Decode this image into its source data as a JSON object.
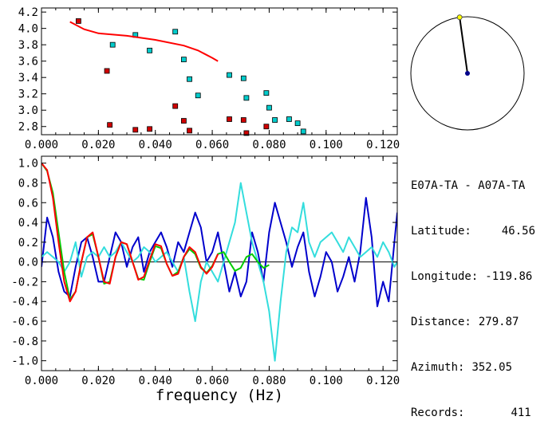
{
  "station": {
    "pair": "E07A-TA - A07A-TA",
    "latitude_label": "Latitude:",
    "latitude": "46.56",
    "longitude_label": "Longitude:",
    "longitude": "-119.86",
    "distance_label": "Distance:",
    "distance": "279.87",
    "azimuth_label": "Azimuth:",
    "azimuth": "352.05",
    "records_label": "Records:",
    "records": "411"
  },
  "compass": {
    "azimuth_deg": 352.05,
    "colors": {
      "ring": "#000000",
      "needle": "#000000",
      "tip": "#ffff00",
      "center": "#00008b"
    }
  },
  "chart_data": [
    {
      "type": "scatter",
      "title": "",
      "xlabel": "",
      "ylabel": "",
      "xlim": [
        0.0,
        0.125
      ],
      "ylim": [
        2.7,
        4.25
      ],
      "xticks": [
        "0.000",
        "0.020",
        "0.040",
        "0.060",
        "0.080",
        "0.100",
        "0.120"
      ],
      "yticks": [
        "2.8",
        "3.0",
        "3.2",
        "3.4",
        "3.6",
        "3.8",
        "4.0",
        "4.2"
      ],
      "series": [
        {
          "color": "#d00000",
          "marker": "square",
          "points": [
            [
              0.013,
              4.09
            ],
            [
              0.023,
              3.48
            ],
            [
              0.024,
              2.82
            ],
            [
              0.033,
              2.76
            ],
            [
              0.038,
              2.77
            ],
            [
              0.047,
              3.05
            ],
            [
              0.05,
              2.87
            ],
            [
              0.052,
              2.75
            ],
            [
              0.066,
              2.89
            ],
            [
              0.071,
              2.88
            ],
            [
              0.072,
              2.72
            ],
            [
              0.079,
              2.8
            ]
          ]
        },
        {
          "color": "#00cccc",
          "marker": "square",
          "points": [
            [
              0.025,
              3.8
            ],
            [
              0.033,
              3.92
            ],
            [
              0.038,
              3.73
            ],
            [
              0.047,
              3.96
            ],
            [
              0.05,
              3.62
            ],
            [
              0.052,
              3.38
            ],
            [
              0.055,
              3.18
            ],
            [
              0.066,
              3.43
            ],
            [
              0.071,
              3.39
            ],
            [
              0.072,
              3.15
            ],
            [
              0.079,
              3.21
            ],
            [
              0.08,
              3.03
            ],
            [
              0.082,
              2.88
            ],
            [
              0.087,
              2.89
            ],
            [
              0.09,
              2.84
            ],
            [
              0.092,
              2.74
            ]
          ]
        },
        {
          "color": "#ff0000",
          "marker": "line",
          "points": [
            [
              0.01,
              4.08
            ],
            [
              0.015,
              3.99
            ],
            [
              0.02,
              3.94
            ],
            [
              0.03,
              3.91
            ],
            [
              0.04,
              3.86
            ],
            [
              0.05,
              3.79
            ],
            [
              0.055,
              3.73
            ],
            [
              0.06,
              3.64
            ],
            [
              0.062,
              3.6
            ]
          ]
        }
      ]
    },
    {
      "type": "line",
      "title": "",
      "xlabel": "frequency (Hz)",
      "ylabel": "",
      "xlim": [
        0.0,
        0.125
      ],
      "ylim": [
        -1.1,
        1.07
      ],
      "xticks": [
        "0.000",
        "0.020",
        "0.040",
        "0.060",
        "0.080",
        "0.100",
        "0.120"
      ],
      "yticks": [
        "1.0",
        "0.8",
        "0.6",
        "0.4",
        "0.2",
        "0.0",
        "-0.2",
        "-0.4",
        "-0.6",
        "-0.8",
        "-1.0"
      ],
      "zero_line": true,
      "series": [
        {
          "color": "#0000cc",
          "x": [
            0,
            0.002,
            0.004,
            0.006,
            0.008,
            0.01,
            0.012,
            0.014,
            0.016,
            0.018,
            0.02,
            0.022,
            0.024,
            0.026,
            0.028,
            0.03,
            0.032,
            0.034,
            0.036,
            0.038,
            0.04,
            0.042,
            0.044,
            0.046,
            0.048,
            0.05,
            0.052,
            0.054,
            0.056,
            0.058,
            0.06,
            0.062,
            0.064,
            0.066,
            0.068,
            0.07,
            0.072,
            0.074,
            0.076,
            0.078,
            0.08,
            0.082,
            0.084,
            0.086,
            0.088,
            0.09,
            0.092,
            0.094,
            0.096,
            0.098,
            0.1,
            0.102,
            0.104,
            0.106,
            0.108,
            0.11,
            0.112,
            0.114,
            0.116,
            0.118,
            0.12,
            0.122,
            0.124,
            0.125
          ],
          "y": [
            -0.05,
            0.45,
            0.25,
            -0.1,
            -0.3,
            -0.35,
            -0.05,
            0.2,
            0.25,
            0.05,
            -0.2,
            -0.2,
            0.05,
            0.3,
            0.2,
            -0.05,
            0.15,
            0.25,
            -0.1,
            0.1,
            0.2,
            0.3,
            0.15,
            -0.05,
            0.2,
            0.1,
            0.3,
            0.5,
            0.35,
            0.0,
            0.1,
            0.3,
            0.0,
            -0.3,
            -0.1,
            -0.35,
            -0.2,
            0.3,
            0.1,
            -0.2,
            0.3,
            0.6,
            0.4,
            0.2,
            -0.05,
            0.15,
            0.3,
            -0.1,
            -0.35,
            -0.15,
            0.1,
            0.0,
            -0.3,
            -0.15,
            0.05,
            -0.2,
            0.1,
            0.65,
            0.25,
            -0.45,
            -0.2,
            -0.4,
            0.2,
            0.5
          ]
        },
        {
          "color": "#33dddd",
          "x": [
            0,
            0.002,
            0.004,
            0.006,
            0.008,
            0.01,
            0.012,
            0.014,
            0.016,
            0.018,
            0.02,
            0.022,
            0.024,
            0.026,
            0.028,
            0.03,
            0.032,
            0.034,
            0.036,
            0.038,
            0.04,
            0.042,
            0.044,
            0.046,
            0.048,
            0.05,
            0.052,
            0.054,
            0.056,
            0.058,
            0.06,
            0.062,
            0.064,
            0.066,
            0.068,
            0.07,
            0.072,
            0.074,
            0.076,
            0.078,
            0.08,
            0.082,
            0.084,
            0.086,
            0.088,
            0.09,
            0.092,
            0.094,
            0.096,
            0.098,
            0.1,
            0.102,
            0.104,
            0.106,
            0.108,
            0.11,
            0.112,
            0.114,
            0.116,
            0.118,
            0.12,
            0.122,
            0.124,
            0.125
          ],
          "y": [
            0.05,
            0.1,
            0.05,
            0.0,
            -0.1,
            0.0,
            0.2,
            -0.15,
            0.05,
            0.1,
            0.05,
            0.15,
            0.05,
            0.1,
            0.2,
            0.1,
            0.0,
            0.05,
            0.15,
            0.1,
            0.0,
            0.05,
            0.1,
            0.0,
            -0.1,
            0.05,
            -0.3,
            -0.6,
            -0.2,
            0.0,
            -0.1,
            -0.2,
            0.0,
            0.2,
            0.4,
            0.8,
            0.5,
            0.2,
            0.0,
            -0.2,
            -0.5,
            -1.0,
            -0.4,
            0.1,
            0.35,
            0.3,
            0.6,
            0.2,
            0.05,
            0.2,
            0.25,
            0.3,
            0.2,
            0.1,
            0.25,
            0.15,
            0.05,
            0.1,
            0.15,
            0.05,
            0.2,
            0.1,
            -0.05,
            0.0
          ]
        },
        {
          "color": "#00cc00",
          "x": [
            0,
            0.002,
            0.004,
            0.006,
            0.008,
            0.01,
            0.012,
            0.014,
            0.016,
            0.018,
            0.02,
            0.022,
            0.024,
            0.026,
            0.028,
            0.03,
            0.032,
            0.034,
            0.036,
            0.038,
            0.04,
            0.042,
            0.044,
            0.046,
            0.048,
            0.05,
            0.052,
            0.054,
            0.056,
            0.058,
            0.06,
            0.062,
            0.064,
            0.066,
            0.068,
            0.07,
            0.072,
            0.074,
            0.076,
            0.078,
            0.08
          ],
          "y": [
            1.0,
            0.92,
            0.7,
            0.3,
            -0.1,
            -0.38,
            -0.3,
            0.0,
            0.25,
            0.28,
            0.05,
            -0.22,
            -0.2,
            0.05,
            0.2,
            0.18,
            0.0,
            -0.17,
            -0.18,
            0.0,
            0.16,
            0.14,
            -0.02,
            -0.14,
            -0.1,
            0.05,
            0.13,
            0.08,
            -0.06,
            -0.11,
            -0.04,
            0.08,
            0.1,
            0.0,
            -0.09,
            -0.06,
            0.05,
            0.08,
            0.0,
            -0.06,
            -0.03
          ]
        },
        {
          "color": "#ff0000",
          "x": [
            0,
            0.002,
            0.004,
            0.006,
            0.008,
            0.01,
            0.012,
            0.014,
            0.016,
            0.018,
            0.02,
            0.022,
            0.024,
            0.026,
            0.028,
            0.03,
            0.032,
            0.034,
            0.036,
            0.038,
            0.04,
            0.042,
            0.044,
            0.046,
            0.048,
            0.05,
            0.052,
            0.054,
            0.056,
            0.058,
            0.06,
            0.062
          ],
          "y": [
            1.0,
            0.93,
            0.65,
            0.2,
            -0.2,
            -0.4,
            -0.3,
            0.0,
            0.25,
            0.3,
            0.05,
            -0.2,
            -0.22,
            0.05,
            0.2,
            0.18,
            0.0,
            -0.18,
            -0.15,
            0.02,
            0.18,
            0.16,
            -0.02,
            -0.14,
            -0.12,
            0.05,
            0.15,
            0.1,
            -0.05,
            -0.12,
            -0.05,
            0.08
          ]
        }
      ]
    }
  ]
}
